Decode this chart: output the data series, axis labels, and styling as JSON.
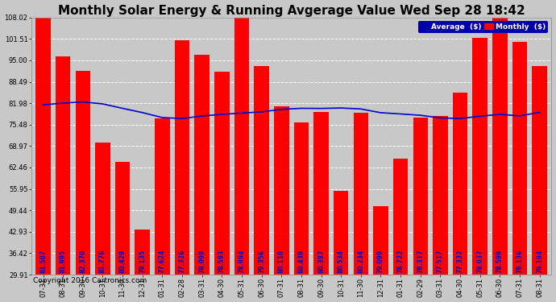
{
  "title": "Monthly Solar Energy & Running Avgerage Value Wed Sep 28 18:42",
  "copyright": "Copyright 2016 Cartronics.com",
  "categories": [
    "07-31",
    "08-31",
    "09-30",
    "10-31",
    "11-30",
    "12-31",
    "01-31",
    "02-28",
    "03-31",
    "04-30",
    "05-31",
    "06-30",
    "07-31",
    "08-31",
    "09-30",
    "10-31",
    "11-30",
    "12-31",
    "01-31",
    "02-29",
    "03-31",
    "04-30",
    "05-31",
    "06-30",
    "07-31",
    "08-31"
  ],
  "bar_values": [
    108.02,
    96.1,
    91.84,
    70.09,
    64.07,
    43.65,
    77.35,
    101.06,
    96.62,
    91.56,
    108.11,
    93.39,
    80.97,
    76.07,
    79.29,
    55.29,
    79.099,
    50.79,
    65.17,
    77.513,
    78.15,
    85.22,
    101.82,
    108.02,
    100.53,
    93.34
  ],
  "avg_values": [
    81.507,
    81.995,
    82.37,
    81.776,
    80.429,
    79.135,
    77.624,
    77.326,
    78.099,
    78.593,
    78.994,
    79.356,
    80.11,
    80.439,
    80.397,
    80.534,
    80.234,
    79.099,
    78.722,
    78.317,
    77.517,
    77.332,
    78.037,
    78.599,
    78.136,
    79.194
  ],
  "bar_color": "#FF0000",
  "line_color": "#0000CC",
  "avg_label_color": "#0000CC",
  "background_color": "#C8C8C8",
  "plot_bg_color": "#C8C8C8",
  "grid_color": "#FFFFFF",
  "ymin": 29.91,
  "ymax": 108.02,
  "yticks": [
    29.91,
    36.42,
    42.93,
    49.44,
    55.95,
    62.46,
    68.97,
    75.48,
    81.98,
    88.49,
    95.0,
    101.51,
    108.02
  ],
  "legend_avg_label": "Average  ($)",
  "legend_monthly_label": "Monthly  ($)",
  "legend_avg_bg": "#0000AA",
  "legend_monthly_bg": "#FF0000",
  "title_fontsize": 11,
  "copyright_fontsize": 6.5,
  "tick_fontsize": 6,
  "label_fontsize": 5.5
}
